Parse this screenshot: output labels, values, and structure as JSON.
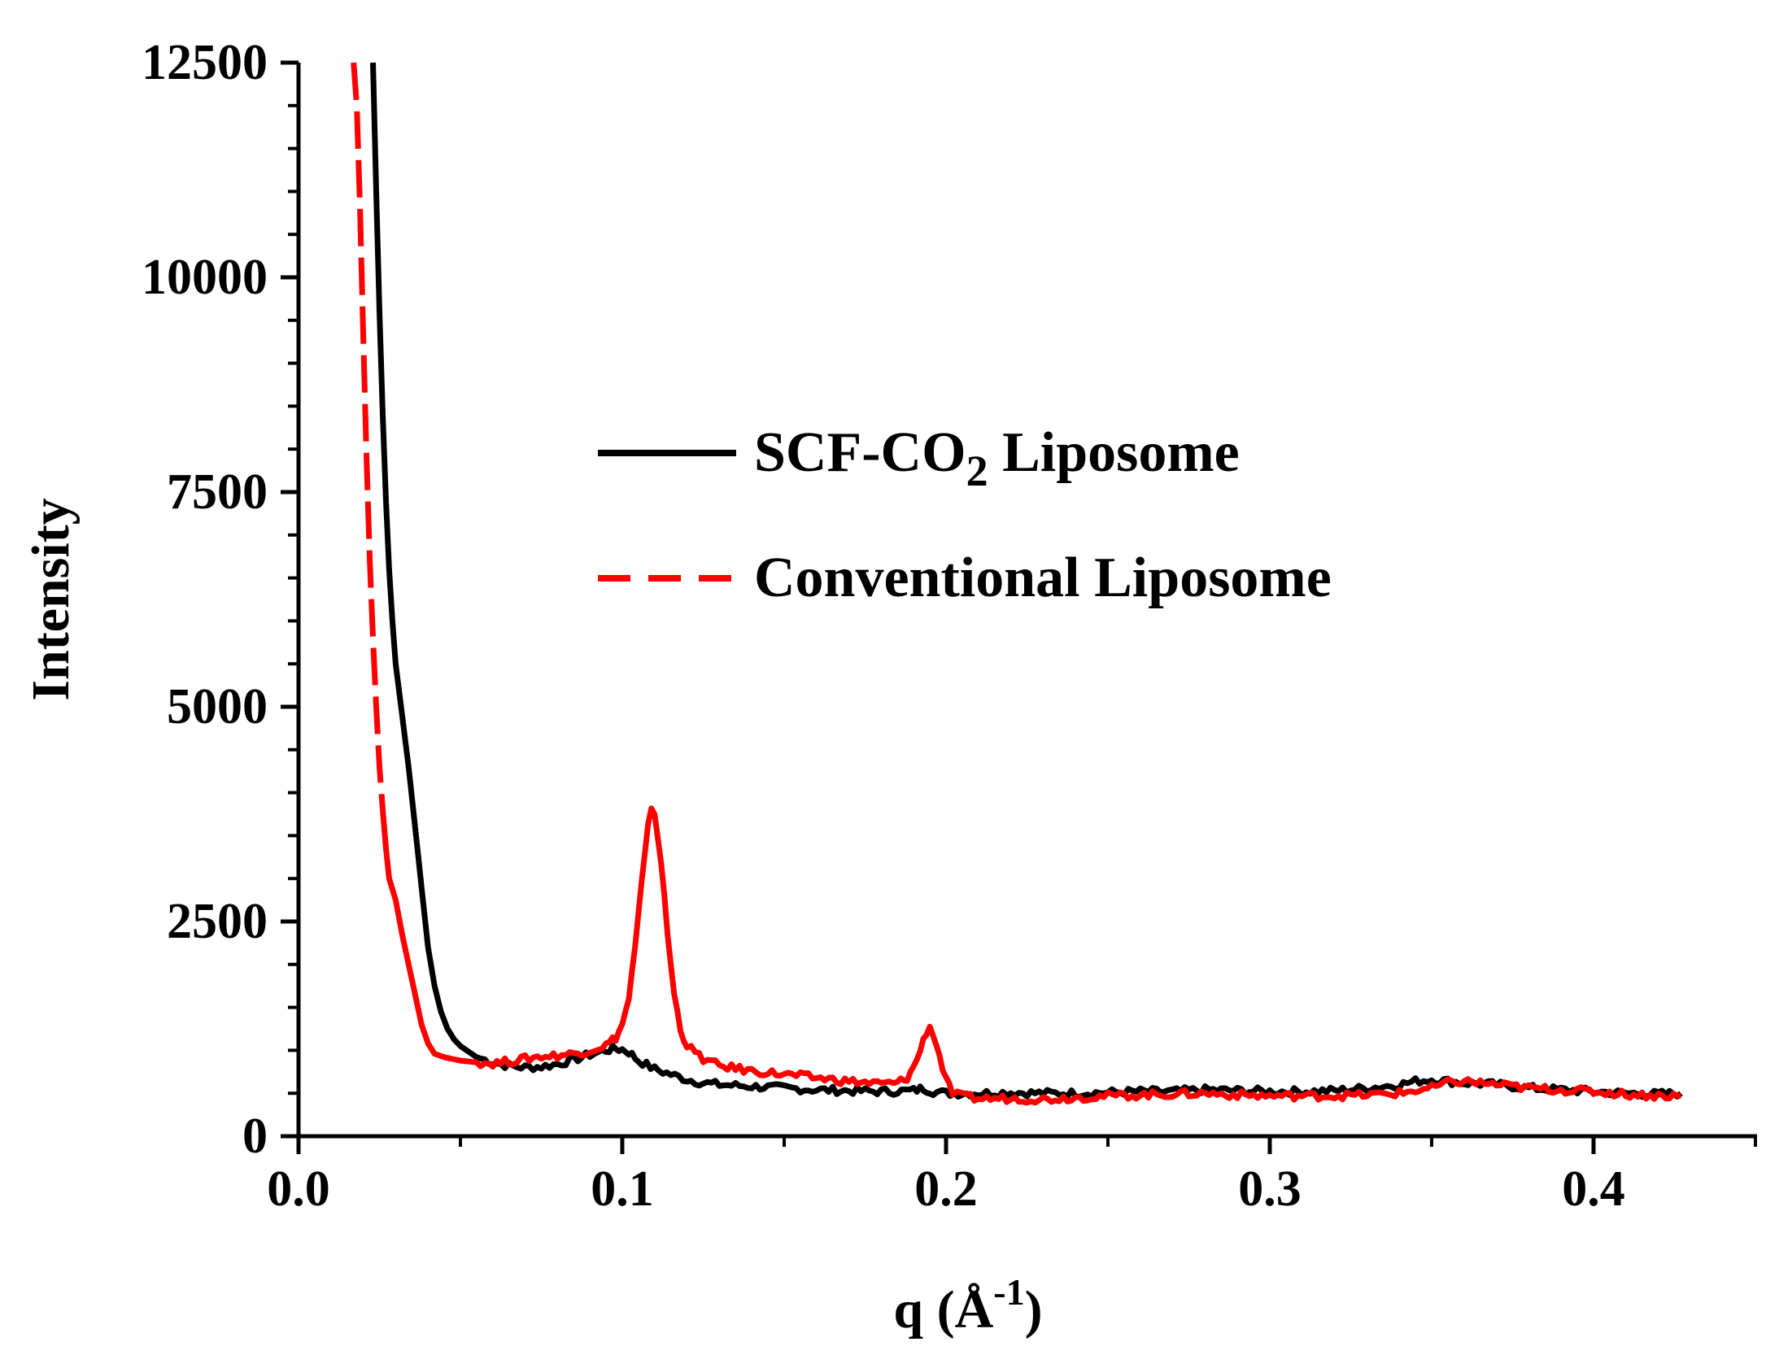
{
  "chart_data": {
    "type": "line",
    "title": "",
    "xlabel": {
      "main": "q (Å",
      "sup": "-1",
      "close": ")"
    },
    "ylabel": "Intensity",
    "xlim": [
      0.0,
      0.45
    ],
    "ylim": [
      0,
      12500
    ],
    "x_ticks": [
      0.0,
      0.1,
      0.2,
      0.3,
      0.4
    ],
    "x_tick_labels": [
      "0.0",
      "0.1",
      "0.2",
      "0.3",
      "0.4"
    ],
    "y_ticks": [
      0,
      2500,
      5000,
      7500,
      10000,
      12500
    ],
    "y_tick_labels": [
      "0",
      "2500",
      "5000",
      "7500",
      "10000",
      "12500"
    ],
    "grid": false,
    "legend_position": "center-right",
    "series": [
      {
        "name": "SCF-CO2 Liposome",
        "legend_label": {
          "pre": "SCF-CO",
          "sub": "2",
          "post": " Liposome"
        },
        "color": "#000000",
        "style": "solid",
        "x": [
          0.023,
          0.024,
          0.025,
          0.026,
          0.027,
          0.028,
          0.029,
          0.03,
          0.032,
          0.034,
          0.036,
          0.038,
          0.04,
          0.042,
          0.044,
          0.046,
          0.048,
          0.05,
          0.055,
          0.06,
          0.065,
          0.07,
          0.075,
          0.08,
          0.085,
          0.09,
          0.095,
          0.098,
          0.1,
          0.102,
          0.105,
          0.11,
          0.115,
          0.12,
          0.125,
          0.13,
          0.14,
          0.15,
          0.16,
          0.17,
          0.18,
          0.19,
          0.193,
          0.196,
          0.2,
          0.21,
          0.22,
          0.23,
          0.24,
          0.25,
          0.26,
          0.27,
          0.28,
          0.29,
          0.3,
          0.31,
          0.32,
          0.33,
          0.34,
          0.345,
          0.35,
          0.355,
          0.36,
          0.37,
          0.38,
          0.39,
          0.4,
          0.41,
          0.42,
          0.427
        ],
        "y": [
          12500,
          11000,
          9600,
          8400,
          7400,
          6600,
          6000,
          5500,
          4900,
          4300,
          3600,
          2900,
          2200,
          1750,
          1450,
          1250,
          1130,
          1050,
          920,
          860,
          820,
          800,
          810,
          840,
          890,
          950,
          1000,
          1020,
          1010,
          980,
          880,
          780,
          720,
          660,
          620,
          600,
          580,
          560,
          540,
          530,
          520,
          530,
          560,
          520,
          500,
          500,
          510,
          500,
          500,
          510,
          520,
          520,
          540,
          530,
          520,
          520,
          530,
          560,
          600,
          640,
          660,
          640,
          620,
          600,
          560,
          540,
          520,
          500,
          490,
          500
        ]
      },
      {
        "name": "Conventional Liposome",
        "legend_label": {
          "pre": "Conventional Liposome",
          "sub": "",
          "post": ""
        },
        "color": "#ff0000",
        "style": "dashed-to-solid",
        "x": [
          0.017,
          0.018,
          0.019,
          0.02,
          0.021,
          0.022,
          0.023,
          0.024,
          0.025,
          0.026,
          0.027,
          0.028,
          0.03,
          0.032,
          0.034,
          0.036,
          0.038,
          0.04,
          0.042,
          0.045,
          0.05,
          0.055,
          0.06,
          0.065,
          0.07,
          0.075,
          0.08,
          0.085,
          0.09,
          0.095,
          0.098,
          0.1,
          0.102,
          0.104,
          0.106,
          0.108,
          0.109,
          0.11,
          0.112,
          0.114,
          0.116,
          0.118,
          0.12,
          0.125,
          0.13,
          0.14,
          0.15,
          0.16,
          0.17,
          0.18,
          0.185,
          0.188,
          0.19,
          0.192,
          0.194,
          0.195,
          0.196,
          0.198,
          0.2,
          0.202,
          0.205,
          0.21,
          0.22,
          0.23,
          0.24,
          0.25,
          0.26,
          0.27,
          0.28,
          0.29,
          0.3,
          0.31,
          0.32,
          0.33,
          0.34,
          0.35,
          0.355,
          0.36,
          0.37,
          0.38,
          0.39,
          0.4,
          0.41,
          0.42,
          0.427
        ],
        "y": [
          12500,
          12000,
          10800,
          9300,
          7900,
          6700,
          5800,
          5000,
          4300,
          3800,
          3350,
          3000,
          2750,
          2350,
          2000,
          1650,
          1300,
          1080,
          960,
          920,
          880,
          860,
          850,
          870,
          900,
          930,
          940,
          960,
          1000,
          1060,
          1150,
          1300,
          1600,
          2200,
          2950,
          3600,
          3850,
          3750,
          3200,
          2350,
          1650,
          1250,
          1050,
          900,
          820,
          760,
          720,
          680,
          640,
          610,
          620,
          680,
          800,
          1000,
          1220,
          1270,
          1200,
          930,
          650,
          500,
          460,
          440,
          440,
          430,
          450,
          470,
          480,
          490,
          500,
          480,
          470,
          470,
          470,
          480,
          500,
          560,
          620,
          640,
          600,
          560,
          540,
          520,
          490,
          470,
          470
        ]
      }
    ]
  }
}
